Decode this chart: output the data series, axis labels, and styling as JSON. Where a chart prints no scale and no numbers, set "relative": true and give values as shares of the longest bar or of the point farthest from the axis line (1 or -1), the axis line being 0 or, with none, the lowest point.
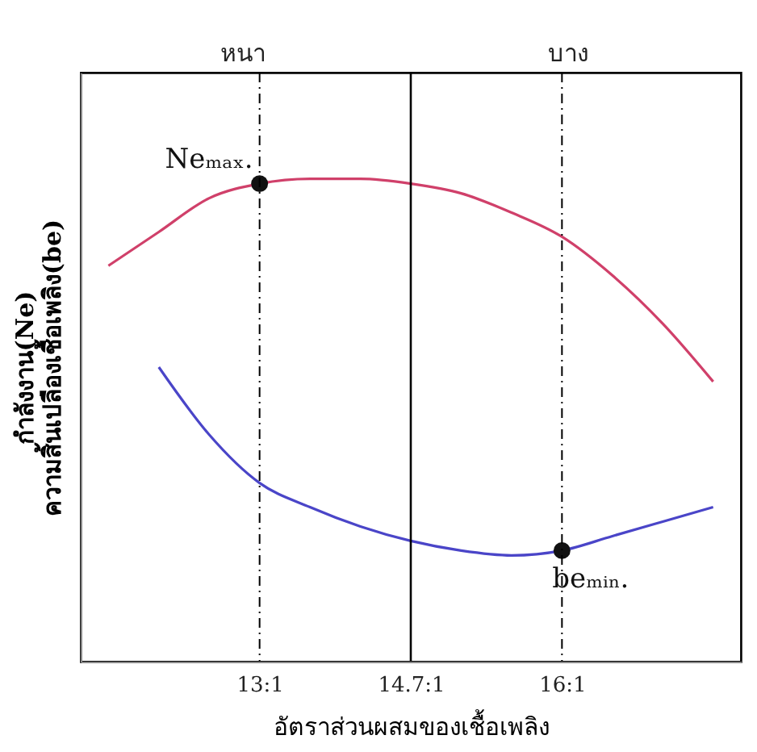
{
  "chart_data": {
    "type": "line",
    "relative": true,
    "xlabel": "อัตราส่วนผสมของเชื้อเพลิง",
    "ylabel": "กำลังงาน(Ne)\nความสิ้นเปลืองเชื้อเพลิง(be)",
    "categories": [
      null,
      null,
      null,
      "13:1",
      null,
      null,
      "14.7:1",
      null,
      null,
      "16:1",
      null,
      null,
      null
    ],
    "grid": false,
    "marker": "none",
    "line_style": "solid",
    "series": [
      {
        "color": "#d0406a",
        "values": [
          0.82,
          0.89,
          0.96,
          0.99,
          1.0,
          1.0,
          0.99,
          0.97,
          0.93,
          0.88,
          0.8,
          0.7,
          0.58
        ]
      },
      {
        "color": "#4a45c8",
        "values": [
          null,
          0.61,
          0.47,
          0.37,
          0.32,
          0.28,
          0.25,
          0.23,
          0.22,
          0.23,
          0.26,
          0.29,
          0.32
        ]
      },
      {
        "type": "scatter",
        "marker": "circle",
        "color": "#111111",
        "x": [
          "13:1",
          "16:1"
        ],
        "values": [
          0.99,
          0.23
        ]
      }
    ],
    "ref_lines": [
      {
        "axis": "x",
        "value": "14.7:1",
        "color": "#000000",
        "line_style": "solid"
      },
      {
        "axis": "x",
        "value": "13:1",
        "color": "#000000",
        "line_style": "dashed"
      },
      {
        "axis": "x",
        "value": "16:1",
        "color": "#000000",
        "line_style": "dashed"
      }
    ],
    "annotations": [
      "หนา",
      "บาง",
      {
        "text": "Neₘₐₓ.",
        "x": "13:1",
        "y": 0.99
      },
      {
        "text": "beₘᵢₙ.",
        "x": "16:1",
        "y": 0.23
      }
    ]
  }
}
